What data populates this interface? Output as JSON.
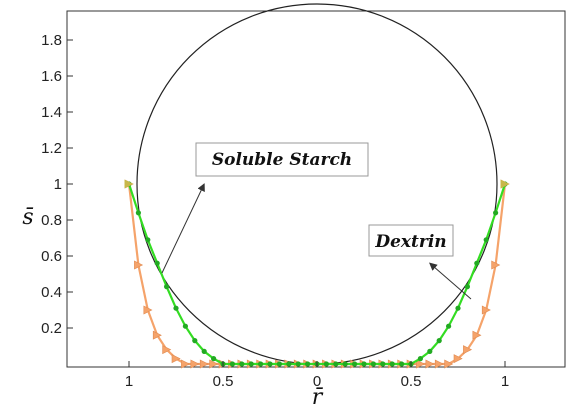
{
  "chart_data": {
    "type": "line",
    "title": "",
    "xlabel": "r̄",
    "ylabel": "s̄",
    "x_tick_labels": [
      "1",
      "0.5",
      "0",
      "0.5",
      "1"
    ],
    "y_tick_labels": [
      "0.2",
      "0.4",
      "0.6",
      "0.8",
      "1",
      "1.2",
      "1.4",
      "1.6",
      "1.8"
    ],
    "xlim": [
      -1.25,
      1.25
    ],
    "ylim": [
      0,
      2
    ],
    "grid": false,
    "circle": {
      "center": [
        0,
        1
      ],
      "radius": 1,
      "color": "#222222"
    },
    "series": [
      {
        "color": "#33dd22",
        "marker": "circle",
        "x": [
          -1.0,
          -0.95,
          -0.9,
          -0.85,
          -0.8,
          -0.75,
          -0.7,
          -0.65,
          -0.6,
          -0.55,
          -0.5,
          -0.45,
          -0.4,
          -0.35,
          -0.3,
          -0.25,
          -0.2,
          -0.15,
          -0.1,
          -0.05,
          0.0,
          0.05,
          0.1,
          0.15,
          0.2,
          0.25,
          0.3,
          0.35,
          0.4,
          0.45,
          0.5,
          0.55,
          0.6,
          0.65,
          0.7,
          0.75,
          0.8,
          0.85,
          0.9,
          0.95,
          1.0
        ],
        "y": [
          1.0,
          0.84,
          0.69,
          0.56,
          0.43,
          0.31,
          0.21,
          0.13,
          0.07,
          0.03,
          0.0,
          0.0,
          0.0,
          0.0,
          0.0,
          0.0,
          0.0,
          0.0,
          0.0,
          0.0,
          0.0,
          0.0,
          0.0,
          0.0,
          0.0,
          0.0,
          0.0,
          0.0,
          0.0,
          0.0,
          0.0,
          0.03,
          0.07,
          0.13,
          0.21,
          0.31,
          0.43,
          0.56,
          0.69,
          0.84,
          1.0
        ]
      },
      {
        "color": "#f5a36a",
        "marker": "triangle",
        "x": [
          -1.0,
          -0.95,
          -0.9,
          -0.85,
          -0.8,
          -0.75,
          -0.7,
          -0.65,
          -0.6,
          -0.55,
          -0.5,
          -0.45,
          -0.4,
          -0.35,
          -0.3,
          -0.25,
          -0.2,
          -0.15,
          -0.1,
          -0.05,
          0.0,
          0.05,
          0.1,
          0.15,
          0.2,
          0.25,
          0.3,
          0.35,
          0.4,
          0.45,
          0.5,
          0.55,
          0.6,
          0.65,
          0.7,
          0.75,
          0.8,
          0.85,
          0.9,
          0.95,
          1.0
        ],
        "y": [
          1.0,
          0.55,
          0.3,
          0.16,
          0.08,
          0.03,
          0.0,
          0.0,
          0.0,
          0.0,
          0.0,
          0.0,
          0.0,
          0.0,
          0.0,
          0.0,
          0.0,
          0.0,
          0.0,
          0.0,
          0.0,
          0.0,
          0.0,
          0.0,
          0.0,
          0.0,
          0.0,
          0.0,
          0.0,
          0.0,
          0.0,
          0.0,
          0.0,
          0.0,
          0.0,
          0.03,
          0.08,
          0.16,
          0.3,
          0.55,
          1.0
        ]
      }
    ],
    "annotations": [
      {
        "text": "Soluble Starch",
        "arrow_to": [
          -0.6,
          1.0
        ]
      },
      {
        "text": "Dextrin",
        "arrow_to": [
          0.6,
          0.56
        ]
      }
    ]
  }
}
